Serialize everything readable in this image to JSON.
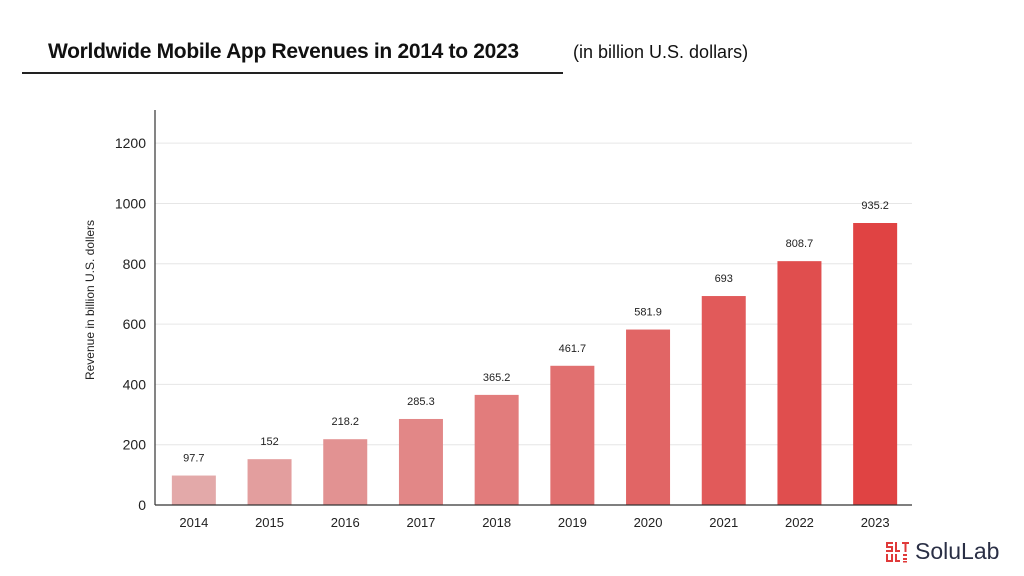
{
  "chart_data": {
    "type": "bar",
    "title": "Worldwide Mobile App Revenues in 2014 to 2023",
    "subtitle": "(in billion U.S. dollars)",
    "xlabel": "",
    "ylabel": "Revenue in billion U.S. dollers",
    "categories": [
      "2014",
      "2015",
      "2016",
      "2017",
      "2018",
      "2019",
      "2020",
      "2021",
      "2022",
      "2023"
    ],
    "values": [
      97.7,
      152,
      218.2,
      285.3,
      365.2,
      461.7,
      581.9,
      693,
      808.7,
      935.2
    ],
    "data_labels": [
      "97.7",
      "152",
      "218.2",
      "285.3",
      "365.2",
      "461.7",
      "581.9",
      "693",
      "808.7",
      "935.2"
    ],
    "ylim": [
      0,
      1310
    ],
    "yticks": [
      0,
      200,
      400,
      600,
      800,
      1000,
      1200
    ],
    "grid": true,
    "legend": "none",
    "colors": {
      "bar_start": "#e3a9a9",
      "bar_end": "#e04343",
      "grid": "#e6e6e6",
      "axis": "#333333"
    }
  },
  "brand": {
    "name": "SoluLab",
    "color": "#e03a3a"
  }
}
